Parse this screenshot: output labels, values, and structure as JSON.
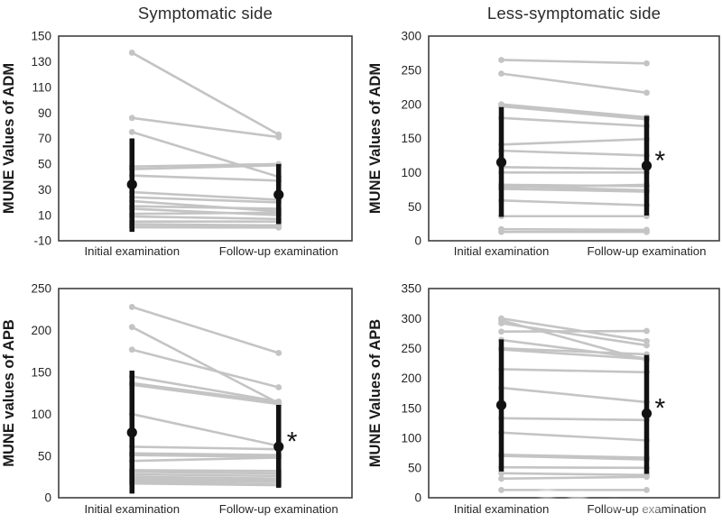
{
  "style": {
    "series_color": "#c4c4c4",
    "emphasis_color": "#121212",
    "axis_color": "#3f3f3f",
    "tick_text_color": "#262626",
    "title_color": "#2b2b2b"
  },
  "x_categories": [
    "Initial examination",
    "Follow-up examination"
  ],
  "chart_data": [
    {
      "id": "symptomatic-adm",
      "type": "line",
      "title": "Symptomatic side",
      "ylabel": "MUNE Values of ADM",
      "categories": [
        "Initial examination",
        "Follow-up examination"
      ],
      "ylim": [
        -10,
        150
      ],
      "yticks": [
        -10,
        10,
        30,
        50,
        70,
        90,
        110,
        130,
        150
      ],
      "grid": false,
      "series": [
        [
          137,
          73
        ],
        [
          86,
          71
        ],
        [
          75,
          40
        ],
        [
          48,
          50
        ],
        [
          46,
          49
        ],
        [
          41,
          37
        ],
        [
          28,
          22
        ],
        [
          24,
          20
        ],
        [
          21,
          13
        ],
        [
          17,
          15
        ],
        [
          15,
          10
        ],
        [
          11,
          12
        ],
        [
          9,
          7
        ],
        [
          5,
          5
        ],
        [
          3,
          2
        ],
        [
          1,
          1
        ],
        [
          0.5,
          0.3
        ]
      ],
      "means": [
        34,
        26
      ],
      "error_bars": [
        [
          -3,
          70
        ],
        [
          3,
          50
        ]
      ],
      "significance": ""
    },
    {
      "id": "less-symptomatic-adm",
      "type": "line",
      "title": "Less-symptomatic side",
      "ylabel": "MUNE Values of ADM",
      "categories": [
        "Initial examination",
        "Follow-up examination"
      ],
      "ylim": [
        0,
        300
      ],
      "yticks": [
        0,
        50,
        100,
        150,
        200,
        250,
        300
      ],
      "grid": false,
      "series": [
        [
          265,
          260
        ],
        [
          245,
          217
        ],
        [
          200,
          181
        ],
        [
          197,
          178
        ],
        [
          180,
          168
        ],
        [
          141,
          149
        ],
        [
          132,
          125
        ],
        [
          108,
          105
        ],
        [
          100,
          100
        ],
        [
          82,
          80
        ],
        [
          80,
          74
        ],
        [
          78,
          82
        ],
        [
          76,
          72
        ],
        [
          59,
          52
        ],
        [
          36,
          36
        ],
        [
          17,
          16
        ],
        [
          13,
          13
        ]
      ],
      "means": [
        115,
        110
      ],
      "error_bars": [
        [
          35,
          196
        ],
        [
          37,
          183
        ]
      ],
      "significance": "*"
    },
    {
      "id": "symptomatic-apb",
      "type": "line",
      "title": "",
      "ylabel": "MUNE values of APB",
      "categories": [
        "Initial examination",
        "Follow-up examination"
      ],
      "ylim": [
        0,
        250
      ],
      "yticks": [
        0,
        50,
        100,
        150,
        200,
        250
      ],
      "grid": false,
      "series": [
        [
          228,
          173
        ],
        [
          204,
          113
        ],
        [
          177,
          132
        ],
        [
          145,
          115
        ],
        [
          137,
          114
        ],
        [
          135,
          112
        ],
        [
          100,
          62
        ],
        [
          61,
          58
        ],
        [
          53,
          51
        ],
        [
          51,
          49
        ],
        [
          44,
          48
        ],
        [
          33,
          32
        ],
        [
          31,
          29
        ],
        [
          28,
          26
        ],
        [
          25,
          23
        ],
        [
          23,
          21
        ],
        [
          21,
          19
        ],
        [
          19,
          16
        ],
        [
          17,
          15
        ]
      ],
      "means": [
        78,
        61
      ],
      "error_bars": [
        [
          5,
          152
        ],
        [
          12,
          111
        ]
      ],
      "significance": "*"
    },
    {
      "id": "less-symptomatic-apb",
      "type": "line",
      "title": "",
      "ylabel": "MUNE Values of APB",
      "categories": [
        "Initial examination",
        "Follow-up examination"
      ],
      "ylim": [
        0,
        350
      ],
      "yticks": [
        0,
        50,
        100,
        150,
        200,
        250,
        300,
        350
      ],
      "grid": false,
      "series": [
        [
          300,
          262
        ],
        [
          297,
          230
        ],
        [
          292,
          255
        ],
        [
          278,
          279
        ],
        [
          264,
          233
        ],
        [
          250,
          240
        ],
        [
          248,
          232
        ],
        [
          215,
          210
        ],
        [
          184,
          160
        ],
        [
          133,
          130
        ],
        [
          109,
          96
        ],
        [
          72,
          67
        ],
        [
          70,
          64
        ],
        [
          51,
          50
        ],
        [
          41,
          38
        ],
        [
          32,
          35
        ],
        [
          13,
          13
        ]
      ],
      "means": [
        155,
        141
      ],
      "error_bars": [
        [
          44,
          265
        ],
        [
          40,
          239
        ]
      ],
      "significance": "*"
    }
  ]
}
